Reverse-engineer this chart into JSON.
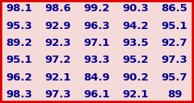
{
  "rows": [
    [
      "98.1",
      "98.6",
      "99.2",
      "90.3",
      "86.5"
    ],
    [
      "95.3",
      "92.9",
      "96.3",
      "94.2",
      "95.1"
    ],
    [
      "89.2",
      "92.3",
      "97.1",
      "93.5",
      "92.7"
    ],
    [
      "95.1",
      "97.2",
      "93.3",
      "95.2",
      "97.3"
    ],
    [
      "96.2",
      "92.1",
      "84.9",
      "90.2",
      "95.7"
    ],
    [
      "98.3",
      "97.3",
      "96.1",
      "92.1",
      "89"
    ]
  ],
  "background_color": "#f5dada",
  "border_color": "#dd0000",
  "text_color": "#00008b",
  "font_size": 9.5,
  "n_rows": 6,
  "n_cols": 5,
  "border_width": 4
}
